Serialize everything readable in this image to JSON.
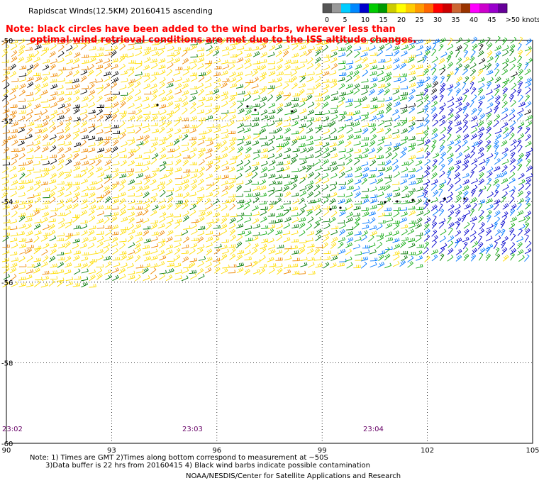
{
  "title": "Rapidscat Winds(12.5KM) 20160415 ascending",
  "note": {
    "line1": "Note: black circles have been added to the wind barbs, wherever less than",
    "line2": "optimal wind retrieval conditions are met due to the ISS altitude changes."
  },
  "legend": {
    "ticks": [
      "0",
      "5",
      "10",
      "15",
      "20",
      "25",
      "30",
      "35",
      "40",
      "45",
      ">50 knots"
    ],
    "colors": [
      "#555555",
      "#999999",
      "#00ccff",
      "#0088ff",
      "#0000cc",
      "#00cc00",
      "#009900",
      "#cccc00",
      "#ffff00",
      "#ffcc00",
      "#ff9900",
      "#ff6600",
      "#ff0000",
      "#cc0000",
      "#cc6633",
      "#993300",
      "#ff00ff",
      "#cc00cc",
      "#9900cc",
      "#660099"
    ]
  },
  "axes": {
    "lon_labels": [
      "90",
      "93",
      "96",
      "99",
      "102",
      "105"
    ],
    "lat_labels": [
      "-50",
      "-52",
      "-54",
      "-56",
      "-58",
      "-60"
    ]
  },
  "times": [
    "23:02",
    "23:03",
    "23:04"
  ],
  "footnotes": {
    "line1": "Note: 1) Times are GMT 2)Times along bottom correspond to measurement at ~50S",
    "line2": "3)Data buffer is 22 hrs from 20160415 4) Black wind barbs indicate possible contamination",
    "line3": "NOAA/NESDIS/Center for Satellite Applications and Research"
  },
  "colors": {
    "note": "#ff0000",
    "time": "#660066",
    "barb_yellow": "#ffdd00",
    "barb_orange": "#ee8800",
    "barb_green": "#11aa11",
    "barb_dkgreen": "#007700",
    "barb_blue": "#0000cc",
    "barb_ltblue": "#0077ff",
    "barb_black": "#000000"
  }
}
